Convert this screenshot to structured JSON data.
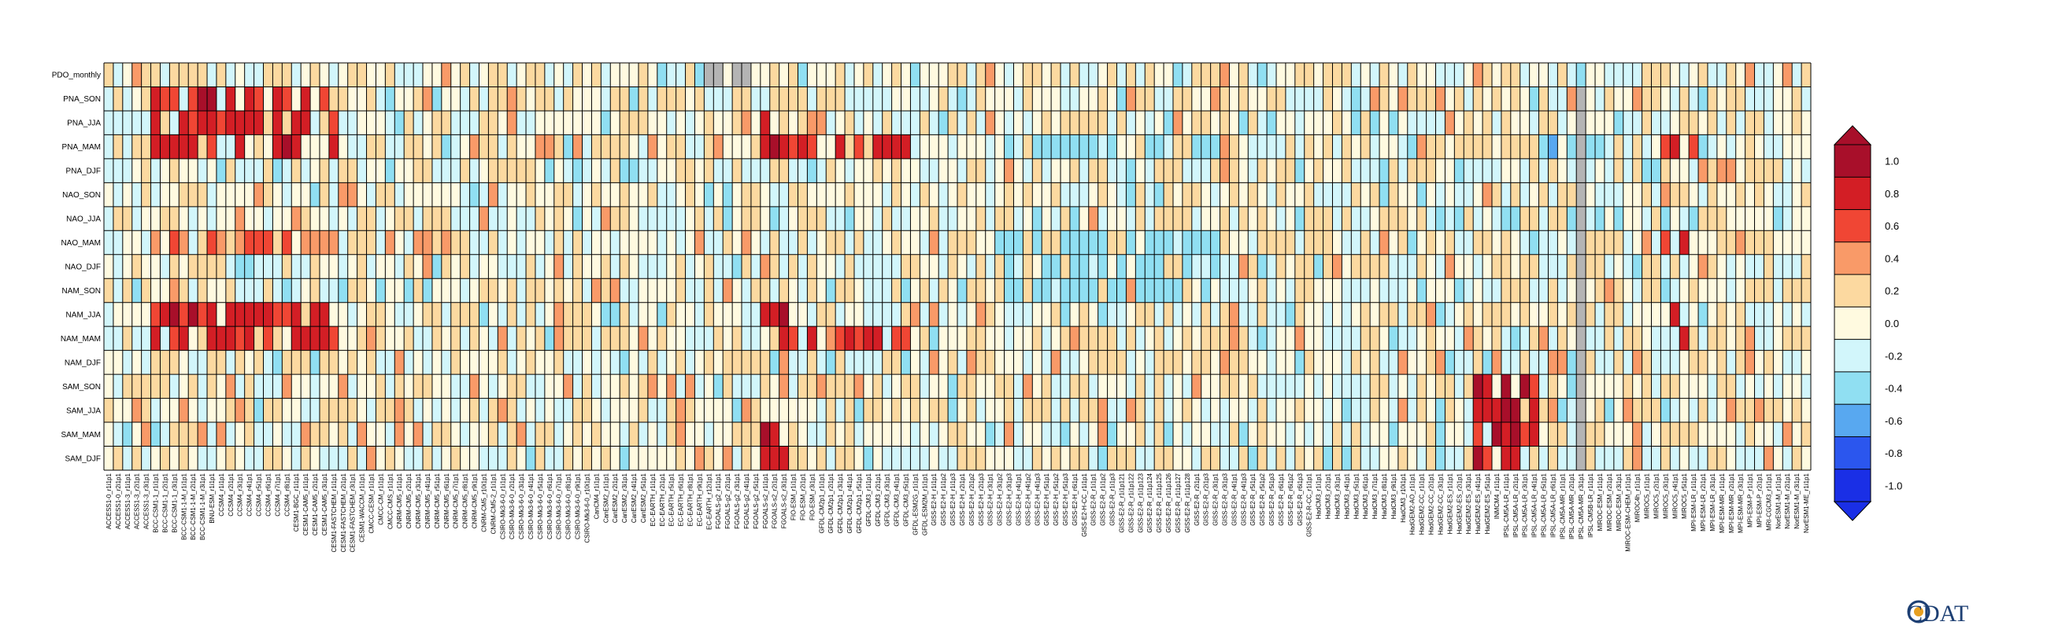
{
  "chart_data": {
    "type": "heatmap",
    "rows": [
      "PDO_monthly",
      "PNA_SON",
      "PNA_JJA",
      "PNA_MAM",
      "PNA_DJF",
      "NAO_SON",
      "NAO_JJA",
      "NAO_MAM",
      "NAO_DJF",
      "NAM_SON",
      "NAM_JJA",
      "NAM_MAM",
      "NAM_DJF",
      "SAM_SON",
      "SAM_JJA",
      "SAM_MAM",
      "SAM_DJF"
    ],
    "columns": [
      "ACCESS1-0_r1i1p1",
      "ACCESS1-0_r2i1p1",
      "ACCESS1-3_r1i1p1",
      "ACCESS1-3_r2i1p1",
      "ACCESS1-3_r3i1p1",
      "BCC-CSM1-1_r1i1p1",
      "BCC-CSM1-1_r2i1p1",
      "BCC-CSM1-1_r3i1p1",
      "BCC-CSM1-1-M_r1i1p1",
      "BCC-CSM1-1-M_r2i1p1",
      "BCC-CSM1-1-M_r3i1p1",
      "BNU-ESM_r1i1p1",
      "CCSM4_r1i1p1",
      "CCSM4_r2i1p1",
      "CCSM4_r3i1p1",
      "CCSM4_r4i1p1",
      "CCSM4_r5i1p1",
      "CCSM4_r6i1p1",
      "CCSM4_r7i1p1",
      "CCSM4_r8i1p1",
      "CESM1-BGC_r1i1p1",
      "CESM1-CAM5_r1i1p1",
      "CESM1-CAM5_r2i1p1",
      "CESM1-CAM5_r3i1p1",
      "CESM1-FASTCHEM_r1i1p1",
      "CESM1-FASTCHEM_r2i1p1",
      "CESM1-FASTCHEM_r3i1p1",
      "CESM1-WACCM_r1i1p1",
      "CMCC-CESM_r1i1p1",
      "CMCC-CM_r1i1p1",
      "CMCC-CMS_r1i1p1",
      "CNRM-CM5_r1i1p1",
      "CNRM-CM5_r2i1p1",
      "CNRM-CM5_r3i1p1",
      "CNRM-CM5_r4i1p1",
      "CNRM-CM5_r5i1p1",
      "CNRM-CM5_r6i1p1",
      "CNRM-CM5_r7i1p1",
      "CNRM-CM5_r8i1p1",
      "CNRM-CM5_r9i1p1",
      "CNRM-CM5_r10i1p1",
      "CNRM-CM5-2_r1i1p1",
      "CSIRO-Mk3-6-0_r1i1p1",
      "CSIRO-Mk3-6-0_r2i1p1",
      "CSIRO-Mk3-6-0_r3i1p1",
      "CSIRO-Mk3-6-0_r4i1p1",
      "CSIRO-Mk3-6-0_r5i1p1",
      "CSIRO-Mk3-6-0_r6i1p1",
      "CSIRO-Mk3-6-0_r7i1p1",
      "CSIRO-Mk3-6-0_r8i1p1",
      "CSIRO-Mk3-6-0_r9i1p1",
      "CSIRO-Mk3-6-0_r10i1p1",
      "CanCM4_r1i1p1",
      "CanESM2_r1i1p1",
      "CanESM2_r2i1p1",
      "CanESM2_r3i1p1",
      "CanESM2_r4i1p1",
      "CanESM2_r5i1p1",
      "EC-EARTH_r1i1p1",
      "EC-EARTH_r2i1p1",
      "EC-EARTH_r5i1p1",
      "EC-EARTH_r6i1p1",
      "EC-EARTH_r8i1p1",
      "EC-EARTH_r9i1p1",
      "EC-EARTH_r12i1p1",
      "FGOALS-g2_r1i1p1",
      "FGOALS-g2_r2i1p1",
      "FGOALS-g2_r3i1p1",
      "FGOALS-g2_r4i1p1",
      "FGOALS-g2_r5i1p1",
      "FGOALS-s2_r1i1p1",
      "FGOALS-s2_r2i1p1",
      "FGOALS-s2_r3i1p1",
      "FIO-ESM_r1i1p1",
      "FIO-ESM_r2i1p1",
      "FIO-ESM_r3i1p1",
      "GFDL-CM2p1_r1i1p1",
      "GFDL-CM2p1_r2i1p1",
      "GFDL-CM2p1_r3i1p1",
      "GFDL-CM2p1_r4i1p1",
      "GFDL-CM2p1_r5i1p1",
      "GFDL-CM3_r1i1p1",
      "GFDL-CM3_r2i1p1",
      "GFDL-CM3_r3i1p1",
      "GFDL-CM3_r4i1p1",
      "GFDL-CM3_r5i1p1",
      "GFDL-ESM2G_r1i1p1",
      "GFDL-ESM2M_r1i1p1",
      "GISS-E2-H_r1i1p1",
      "GISS-E2-H_r1i1p2",
      "GISS-E2-H_r1i1p3",
      "GISS-E2-H_r2i1p1",
      "GISS-E2-H_r2i1p2",
      "GISS-E2-H_r2i1p3",
      "GISS-E2-H_r3i1p1",
      "GISS-E2-H_r3i1p2",
      "GISS-E2-H_r3i1p3",
      "GISS-E2-H_r4i1p1",
      "GISS-E2-H_r4i1p2",
      "GISS-E2-H_r4i1p3",
      "GISS-E2-H_r5i1p1",
      "GISS-E2-H_r5i1p2",
      "GISS-E2-H_r5i1p3",
      "GISS-E2-H_r6i1p1",
      "GISS-E2-H-CC_r1i1p1",
      "GISS-E2-R_r1i1p1",
      "GISS-E2-R_r1i1p2",
      "GISS-E2-R_r1i1p3",
      "GISS-E2-R_r1i1p121",
      "GISS-E2-R_r1i1p122",
      "GISS-E2-R_r1i1p123",
      "GISS-E2-R_r1i1p124",
      "GISS-E2-R_r1i1p125",
      "GISS-E2-R_r1i1p126",
      "GISS-E2-R_r1i1p127",
      "GISS-E2-R_r1i1p128",
      "GISS-E2-R_r2i1p1",
      "GISS-E2-R_r2i1p3",
      "GISS-E2-R_r3i1p1",
      "GISS-E2-R_r3i1p3",
      "GISS-E2-R_r4i1p1",
      "GISS-E2-R_r4i1p3",
      "GISS-E2-R_r5i1p1",
      "GISS-E2-R_r5i1p2",
      "GISS-E2-R_r5i1p3",
      "GISS-E2-R_r6i1p1",
      "GISS-E2-R_r6i1p2",
      "GISS-E2-R_r6i1p3",
      "GISS-E2-R-CC_r1i1p1",
      "HadCM3_r1i1p1",
      "HadCM3_r2i1p1",
      "HadCM3_r3i1p1",
      "HadCM3_r4i1p1",
      "HadCM3_r5i1p1",
      "HadCM3_r6i1p1",
      "HadCM3_r7i1p1",
      "HadCM3_r8i1p1",
      "HadCM3_r9i1p1",
      "HadCM3_r10i1p1",
      "HadGEM2-AO_r1i1p1",
      "HadGEM2-CC_r1i1p1",
      "HadGEM2-CC_r2i1p1",
      "HadGEM2-CC_r3i1p1",
      "HadGEM2-ES_r1i1p1",
      "HadGEM2-ES_r2i1p1",
      "HadGEM2-ES_r3i1p1",
      "HadGEM2-ES_r4i1p1",
      "HadGEM2-ES_r5i1p1",
      "INMCM4_r1i1p1",
      "IPSL-CM5A-LR_r1i1p1",
      "IPSL-CM5A-LR_r2i1p1",
      "IPSL-CM5A-LR_r3i1p1",
      "IPSL-CM5A-LR_r4i1p1",
      "IPSL-CM5A-LR_r5i1p1",
      "IPSL-CM5A-LR_r6i1p1",
      "IPSL-CM5A-MR_r1i1p1",
      "IPSL-CM5A-MR_r2i1p1",
      "IPSL-CM5A-MR_r3i1p1",
      "IPSL-CM5B-LR_r1i1p1",
      "MIROC-ESM_r1i1p1",
      "MIROC-ESM_r2i1p1",
      "MIROC-ESM_r3i1p1",
      "MIROC-ESM-CHEM_r1i1p1",
      "MIROC4h_r1i1p1",
      "MIROC5_r1i1p1",
      "MIROC5_r2i1p1",
      "MIROC5_r3i1p1",
      "MIROC5_r4i1p1",
      "MIROC5_r5i1p1",
      "MPI-ESM-LR_r1i1p1",
      "MPI-ESM-LR_r2i1p1",
      "MPI-ESM-LR_r3i1p1",
      "MPI-ESM-MR_r1i1p1",
      "MPI-ESM-MR_r2i1p1",
      "MPI-ESM-MR_r3i1p1",
      "MPI-ESM-P_r1i1p1",
      "MPI-ESM-P_r2i1p1",
      "MRI-CGCM3_r1i1p1",
      "NorESM1-M_r1i1p1",
      "NorESM1-M_r2i1p1",
      "NorESM1-M_r3i1p1",
      "NorESM1-ME_r1i1p1"
    ],
    "value_range": [
      -1.0,
      1.0
    ],
    "colorbar": {
      "ticks": [
        "1.0",
        "0.8",
        "0.6",
        "0.4",
        "0.2",
        "0.0",
        "-0.2",
        "-0.4",
        "-0.6",
        "-0.8",
        "-1.0"
      ],
      "colors": [
        "#1a2fe6",
        "#2b56ee",
        "#58a8f0",
        "#90dff2",
        "#d2f6fb",
        "#fffae0",
        "#fcd9a0",
        "#f99a68",
        "#f04634",
        "#d31e25",
        "#a80f2a"
      ],
      "extend": "both"
    },
    "missing_color": "#b4b4b4",
    "missing_cells": [
      [
        0,
        64
      ],
      [
        0,
        65
      ],
      [
        0,
        67
      ],
      [
        0,
        68
      ],
      [
        1,
        157
      ],
      [
        2,
        157
      ],
      [
        3,
        157
      ],
      [
        4,
        157
      ],
      [
        5,
        157
      ],
      [
        6,
        157
      ],
      [
        7,
        157
      ],
      [
        8,
        157
      ],
      [
        9,
        157
      ],
      [
        10,
        157
      ],
      [
        11,
        157
      ],
      [
        12,
        157
      ],
      [
        13,
        157
      ],
      [
        14,
        157
      ],
      [
        15,
        157
      ],
      [
        16,
        157
      ]
    ],
    "values_note": "",
    "hot_regions": [
      {
        "rows": [
          1,
          2,
          3,
          10,
          11
        ],
        "cols": [
          5,
          24
        ],
        "value": 0.85
      },
      {
        "rows": [
          7
        ],
        "cols": [
          5,
          24
        ],
        "value": 0.6
      },
      {
        "rows": [
          2,
          3,
          10,
          11,
          15,
          16
        ],
        "cols": [
          70,
          72
        ],
        "value": 0.9
      },
      {
        "rows": [
          3,
          11
        ],
        "cols": [
          73,
          85
        ],
        "value": 0.75
      },
      {
        "rows": [
          13,
          14,
          15,
          16
        ],
        "cols": [
          146,
          152
        ],
        "value": 0.9
      },
      {
        "rows": [
          3,
          7,
          10,
          11
        ],
        "cols": [
          166,
          169
        ],
        "value": 0.8
      }
    ],
    "cold_regions": [
      {
        "rows": [
          3,
          7,
          8,
          9
        ],
        "cols": [
          96,
          118
        ],
        "value": -0.45
      },
      {
        "rows": [
          3
        ],
        "cols": [
          152,
          160
        ],
        "value": -0.5
      }
    ]
  },
  "logo": {
    "text": "CDAT"
  }
}
